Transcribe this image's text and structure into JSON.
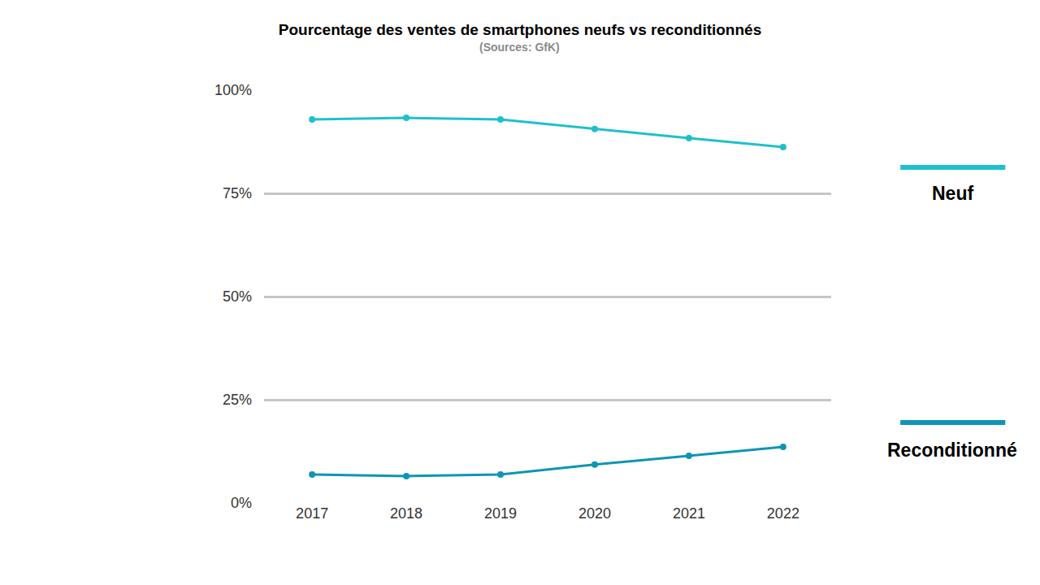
{
  "chart_data": {
    "type": "line",
    "title": "Pourcentage des ventes de smartphones neufs vs reconditionnés",
    "subtitle": "(Sources: GfK)",
    "categories": [
      "2017",
      "2018",
      "2019",
      "2020",
      "2021",
      "2022"
    ],
    "series": [
      {
        "name": "Neuf",
        "color": "#1fc0cc",
        "values": [
          92.9,
          93.3,
          92.9,
          90.6,
          88.4,
          86.2
        ]
      },
      {
        "name": "Reconditionné",
        "color": "#0e95b5",
        "values": [
          6.9,
          6.5,
          6.9,
          9.3,
          11.4,
          13.6
        ]
      }
    ],
    "ylim": [
      0,
      100
    ],
    "yticks": [
      {
        "value": 0,
        "label": "0%"
      },
      {
        "value": 25,
        "label": "25%"
      },
      {
        "value": 50,
        "label": "50%"
      },
      {
        "value": 75,
        "label": "75%"
      },
      {
        "value": 100,
        "label": "100%"
      }
    ],
    "grid": true,
    "marker": "circle",
    "line_style": "solid"
  }
}
